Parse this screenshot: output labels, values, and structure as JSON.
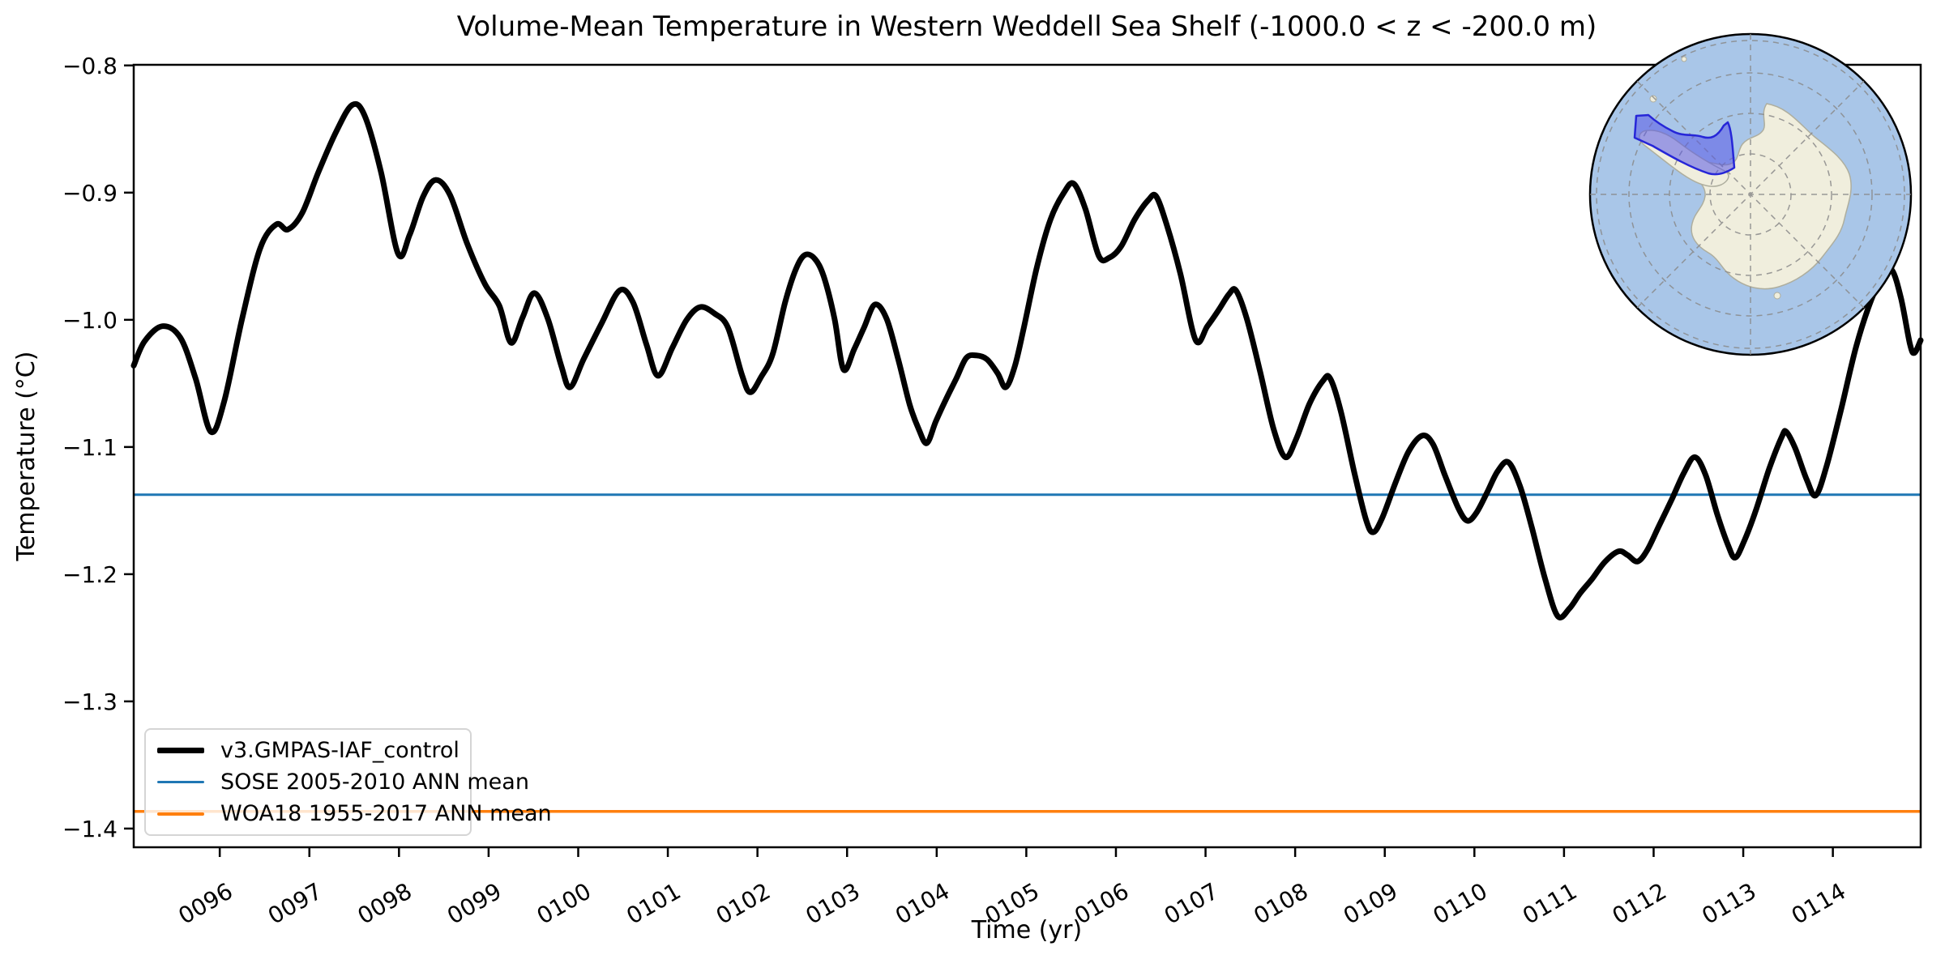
{
  "figure": {
    "title": "Volume-Mean Temperature in Western Weddell Sea Shelf (-1000.0 < z < -200.0 m)"
  },
  "axes": {
    "xlabel": "Time (yr)",
    "ylabel": "Temperature (°C)",
    "xlim": [
      95.04,
      114.98
    ],
    "ylim": [
      -1.4147,
      -0.7995
    ],
    "x_ticks": [
      {
        "value": 96,
        "label": "0096"
      },
      {
        "value": 97,
        "label": "0097"
      },
      {
        "value": 98,
        "label": "0098"
      },
      {
        "value": 99,
        "label": "0099"
      },
      {
        "value": 100,
        "label": "0100"
      },
      {
        "value": 101,
        "label": "0101"
      },
      {
        "value": 102,
        "label": "0102"
      },
      {
        "value": 103,
        "label": "0103"
      },
      {
        "value": 104,
        "label": "0104"
      },
      {
        "value": 105,
        "label": "0105"
      },
      {
        "value": 106,
        "label": "0106"
      },
      {
        "value": 107,
        "label": "0107"
      },
      {
        "value": 108,
        "label": "0108"
      },
      {
        "value": 109,
        "label": "0109"
      },
      {
        "value": 110,
        "label": "0110"
      },
      {
        "value": 111,
        "label": "0111"
      },
      {
        "value": 112,
        "label": "0112"
      },
      {
        "value": 113,
        "label": "0113"
      },
      {
        "value": 114,
        "label": "0114"
      }
    ],
    "y_ticks": [
      {
        "value": -0.8,
        "label": "−0.8"
      },
      {
        "value": -0.9,
        "label": "−0.9"
      },
      {
        "value": -1.0,
        "label": "−1.0"
      },
      {
        "value": -1.1,
        "label": "−1.1"
      },
      {
        "value": -1.2,
        "label": "−1.2"
      },
      {
        "value": -1.3,
        "label": "−1.3"
      },
      {
        "value": -1.4,
        "label": "−1.4"
      }
    ]
  },
  "chart_data": {
    "type": "line",
    "title": "Volume-Mean Temperature in Western Weddell Sea Shelf (-1000.0 < z < -200.0 m)",
    "xlabel": "Time (yr)",
    "ylabel": "Temperature (°C)",
    "xlim": [
      95.04,
      114.98
    ],
    "ylim": [
      -1.4147,
      -0.7995
    ],
    "grid": false,
    "legend_position": "lower left",
    "series": [
      {
        "name": "v3.GMPAS-IAF_control",
        "kind": "curve",
        "color": "#000000",
        "line_width": 7,
        "x": [
          95.04,
          95.16,
          95.36,
          95.56,
          95.73,
          95.9,
          96.05,
          96.25,
          96.45,
          96.63,
          96.76,
          96.92,
          97.1,
          97.3,
          97.48,
          97.62,
          97.8,
          97.99,
          98.12,
          98.27,
          98.41,
          98.57,
          98.76,
          98.96,
          99.12,
          99.25,
          99.38,
          99.51,
          99.66,
          99.81,
          99.91,
          100.06,
          100.26,
          100.46,
          100.61,
          100.76,
          100.89,
          101.05,
          101.21,
          101.36,
          101.52,
          101.67,
          101.83,
          101.92,
          102.04,
          102.17,
          102.31,
          102.43,
          102.53,
          102.64,
          102.74,
          102.86,
          102.96,
          103.08,
          103.19,
          103.31,
          103.44,
          103.57,
          103.7,
          103.8,
          103.89,
          103.99,
          104.1,
          104.22,
          104.33,
          104.44,
          104.56,
          104.68,
          104.77,
          104.87,
          104.97,
          105.12,
          105.27,
          105.42,
          105.53,
          105.66,
          105.81,
          105.93,
          106.06,
          106.21,
          106.36,
          106.45,
          106.57,
          106.72,
          106.89,
          107.02,
          107.14,
          107.26,
          107.34,
          107.46,
          107.61,
          107.76,
          107.89,
          108.01,
          108.16,
          108.31,
          108.39,
          108.51,
          108.66,
          108.79,
          108.87,
          108.97,
          109.12,
          109.27,
          109.42,
          109.54,
          109.67,
          109.82,
          109.92,
          110.02,
          110.14,
          110.26,
          110.38,
          110.51,
          110.64,
          110.79,
          110.93,
          111.06,
          111.18,
          111.31,
          111.46,
          111.61,
          111.71,
          111.82,
          111.93,
          112.06,
          112.21,
          112.34,
          112.46,
          112.58,
          112.71,
          112.83,
          112.91,
          113.01,
          113.14,
          113.29,
          113.43,
          113.48,
          113.58,
          113.71,
          113.81,
          113.93,
          114.09,
          114.26,
          114.43,
          114.56,
          114.66,
          114.76,
          114.86,
          114.91,
          114.98
        ],
        "y": [
          -1.036,
          -1.017,
          -1.005,
          -1.014,
          -1.046,
          -1.088,
          -1.064,
          -0.999,
          -0.944,
          -0.925,
          -0.929,
          -0.916,
          -0.884,
          -0.852,
          -0.831,
          -0.84,
          -0.884,
          -0.948,
          -0.933,
          -0.903,
          -0.89,
          -0.902,
          -0.94,
          -0.972,
          -0.989,
          -1.018,
          -0.998,
          -0.979,
          -0.999,
          -1.036,
          -1.053,
          -1.031,
          -1.003,
          -0.977,
          -0.986,
          -1.019,
          -1.044,
          -1.022,
          -1.0,
          -0.99,
          -0.995,
          -1.006,
          -1.044,
          -1.057,
          -1.045,
          -1.027,
          -0.986,
          -0.96,
          -0.949,
          -0.952,
          -0.966,
          -0.999,
          -1.039,
          -1.023,
          -1.006,
          -0.988,
          -0.999,
          -1.031,
          -1.067,
          -1.086,
          -1.097,
          -1.08,
          -1.063,
          -1.046,
          -1.03,
          -1.028,
          -1.031,
          -1.042,
          -1.053,
          -1.037,
          -1.007,
          -0.958,
          -0.921,
          -0.9,
          -0.893,
          -0.913,
          -0.95,
          -0.951,
          -0.942,
          -0.921,
          -0.906,
          -0.903,
          -0.926,
          -0.964,
          -1.016,
          -1.005,
          -0.993,
          -0.98,
          -0.977,
          -0.999,
          -1.041,
          -1.086,
          -1.108,
          -1.094,
          -1.066,
          -1.048,
          -1.046,
          -1.072,
          -1.12,
          -1.157,
          -1.167,
          -1.156,
          -1.128,
          -1.103,
          -1.091,
          -1.098,
          -1.122,
          -1.148,
          -1.158,
          -1.152,
          -1.136,
          -1.119,
          -1.112,
          -1.131,
          -1.163,
          -1.204,
          -1.233,
          -1.227,
          -1.215,
          -1.204,
          -1.19,
          -1.182,
          -1.185,
          -1.19,
          -1.181,
          -1.162,
          -1.14,
          -1.12,
          -1.108,
          -1.122,
          -1.153,
          -1.177,
          -1.187,
          -1.174,
          -1.15,
          -1.117,
          -1.092,
          -1.088,
          -1.101,
          -1.126,
          -1.138,
          -1.115,
          -1.071,
          -1.021,
          -0.984,
          -0.966,
          -0.961,
          -0.983,
          -1.019,
          -1.026,
          -1.016
        ]
      },
      {
        "name": "SOSE 2005-2010 ANN mean",
        "kind": "hline",
        "color": "#1f77b4",
        "line_width": 3,
        "value": -1.1375
      },
      {
        "name": "WOA18 1955-2017 ANN mean",
        "kind": "hline",
        "color": "#ff7f0e",
        "line_width": 3.5,
        "value": -1.3865
      }
    ]
  },
  "legend": {
    "items": [
      {
        "label": "v3.GMPAS-IAF_control",
        "color": "#000000",
        "swatch_height": 7
      },
      {
        "label": "SOSE 2005-2010 ANN mean",
        "color": "#1f77b4",
        "swatch_height": 3
      },
      {
        "label": "WOA18 1955-2017 ANN mean",
        "color": "#ff7f0e",
        "swatch_height": 4
      }
    ]
  },
  "inset_map": {
    "description": "South polar stereographic locator map of Antarctica with Western Weddell Sea shelf region highlighted",
    "ocean_color": "#a9c6e8",
    "land_color": "#f0eedd",
    "coast_color": "#aeae9e",
    "graticule_color": "#8a8a8a",
    "region_fill": "#5a5ae6",
    "region_outline": "#2626d8"
  }
}
